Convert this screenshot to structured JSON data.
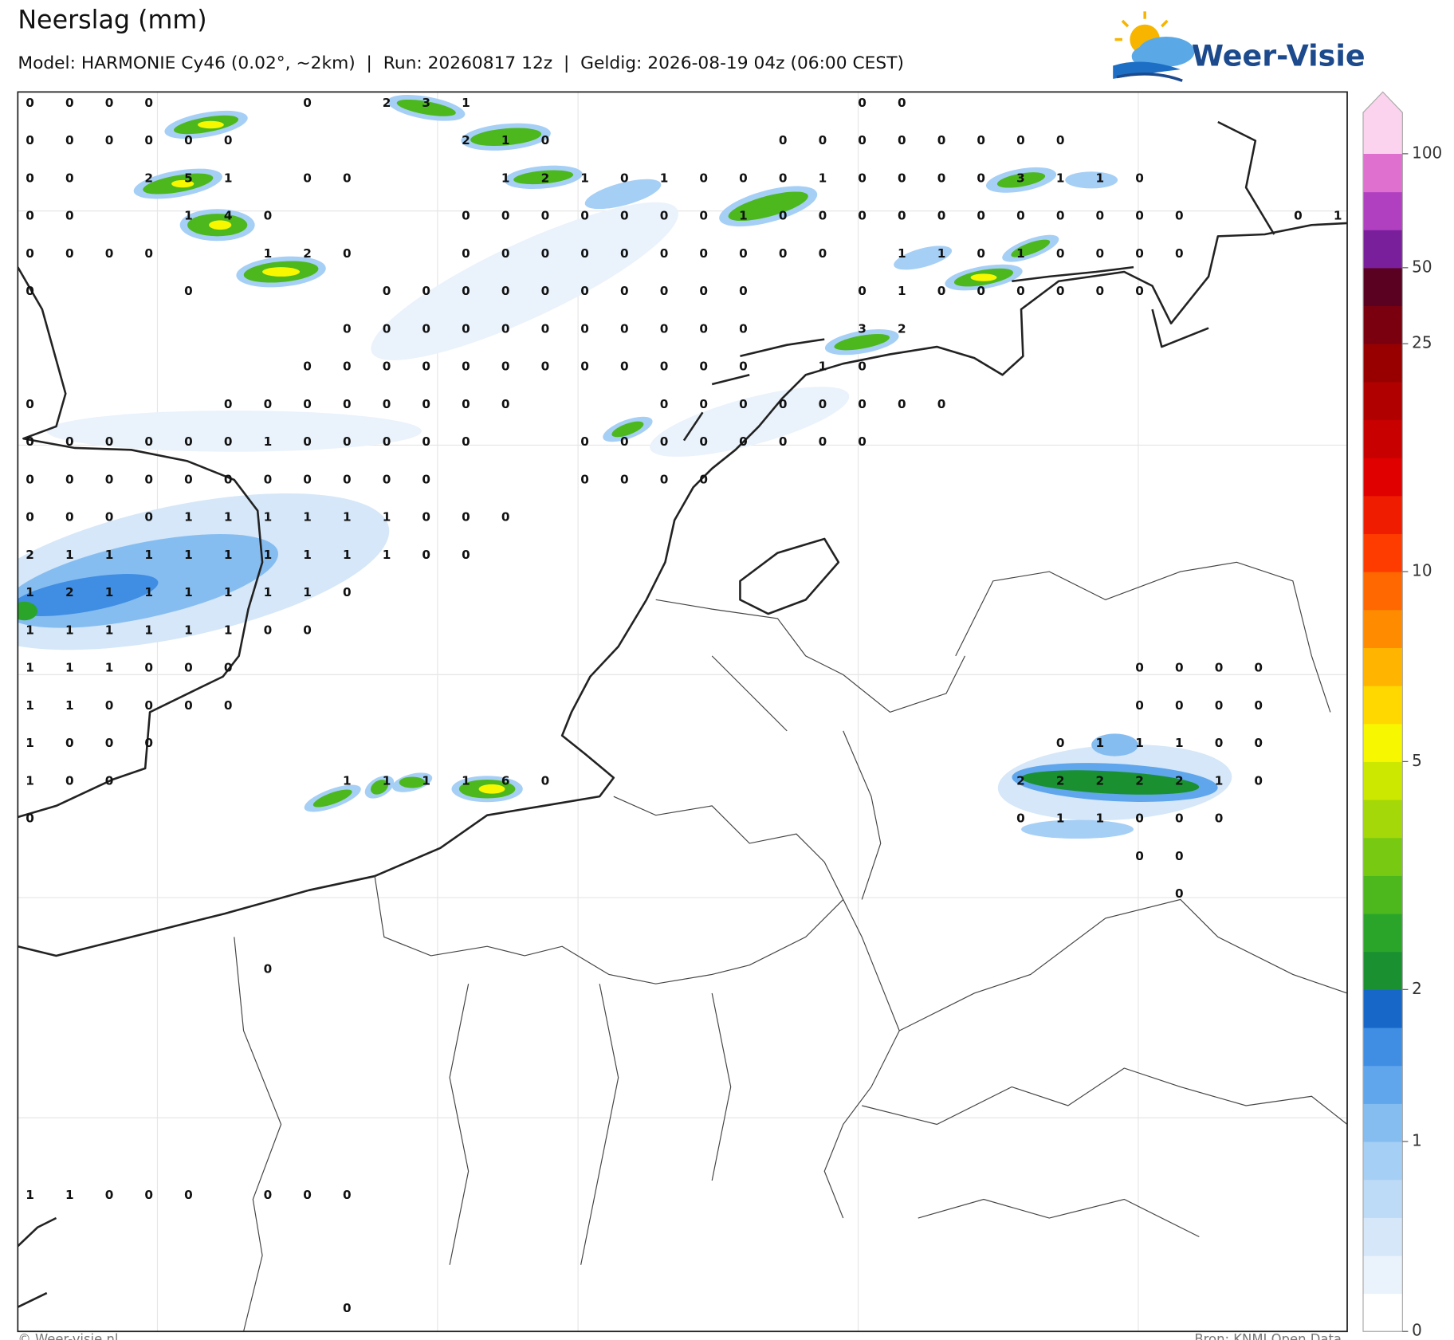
{
  "header": {
    "title": "Neerslag (mm)",
    "subtitle": "Model: HARMONIE Cy46 (0.02°, ~2km)  |  Run: 20260817 12z  |  Geldig: 2026-08-19 04z (06:00 CEST)"
  },
  "logo": {
    "text": "Weer-Visie"
  },
  "grid": {
    "rows": [
      [
        0,
        0,
        0,
        0,
        null,
        null,
        null,
        0,
        null,
        2,
        3,
        1,
        null,
        null,
        null,
        null,
        null,
        null,
        null,
        null,
        null,
        0,
        0
      ],
      [
        0,
        0,
        0,
        0,
        0,
        0,
        null,
        null,
        null,
        null,
        null,
        2,
        1,
        0,
        null,
        null,
        null,
        null,
        null,
        0,
        0,
        0,
        0,
        0,
        0,
        0,
        0
      ],
      [
        0,
        0,
        null,
        2,
        5,
        1,
        null,
        0,
        0,
        null,
        null,
        null,
        1,
        2,
        1,
        0,
        1,
        0,
        0,
        0,
        1,
        0,
        0,
        0,
        0,
        3,
        1,
        1,
        0
      ],
      [
        0,
        0,
        null,
        null,
        1,
        4,
        0,
        null,
        null,
        null,
        null,
        0,
        0,
        0,
        0,
        0,
        0,
        0,
        1,
        0,
        0,
        0,
        0,
        0,
        0,
        0,
        0,
        0,
        0,
        0,
        null,
        null,
        0,
        1
      ],
      [
        0,
        0,
        0,
        0,
        null,
        null,
        1,
        2,
        0,
        null,
        null,
        0,
        0,
        0,
        0,
        0,
        0,
        0,
        0,
        0,
        0,
        null,
        1,
        1,
        0,
        1,
        0,
        0,
        0,
        0
      ],
      [
        0,
        null,
        null,
        null,
        0,
        null,
        null,
        null,
        null,
        0,
        0,
        0,
        0,
        0,
        0,
        0,
        0,
        0,
        0,
        null,
        null,
        0,
        1,
        0,
        0,
        0,
        0,
        0,
        0
      ],
      [
        null,
        null,
        null,
        null,
        null,
        null,
        null,
        null,
        0,
        0,
        0,
        0,
        0,
        0,
        0,
        0,
        0,
        0,
        0,
        null,
        null,
        3,
        2
      ],
      [
        null,
        null,
        null,
        null,
        null,
        null,
        null,
        0,
        0,
        0,
        0,
        0,
        0,
        0,
        0,
        0,
        0,
        0,
        0,
        null,
        1,
        0
      ],
      [
        0,
        null,
        null,
        null,
        null,
        0,
        0,
        0,
        0,
        0,
        0,
        0,
        0,
        null,
        null,
        null,
        0,
        0,
        0,
        0,
        0,
        0,
        0,
        0
      ],
      [
        0,
        0,
        0,
        0,
        0,
        0,
        1,
        0,
        0,
        0,
        0,
        0,
        null,
        null,
        0,
        0,
        0,
        0,
        0,
        0,
        0,
        0
      ],
      [
        0,
        0,
        0,
        0,
        0,
        0,
        0,
        0,
        0,
        0,
        0,
        null,
        null,
        null,
        0,
        0,
        0,
        0
      ],
      [
        0,
        0,
        0,
        0,
        1,
        1,
        1,
        1,
        1,
        1,
        0,
        0,
        0
      ],
      [
        2,
        1,
        1,
        1,
        1,
        1,
        1,
        1,
        1,
        1,
        0,
        0
      ],
      [
        1,
        2,
        1,
        1,
        1,
        1,
        1,
        1,
        0
      ],
      [
        1,
        1,
        1,
        1,
        1,
        1,
        0,
        0
      ],
      [
        1,
        1,
        1,
        0,
        0,
        0,
        null,
        null,
        null,
        null,
        null,
        null,
        null,
        null,
        null,
        null,
        null,
        null,
        null,
        null,
        null,
        null,
        null,
        null,
        null,
        null,
        null,
        null,
        0,
        0,
        0,
        0
      ],
      [
        1,
        1,
        0,
        0,
        0,
        0,
        null,
        null,
        null,
        null,
        null,
        null,
        null,
        null,
        null,
        null,
        null,
        null,
        null,
        null,
        null,
        null,
        null,
        null,
        null,
        null,
        null,
        null,
        0,
        0,
        0,
        0
      ],
      [
        1,
        0,
        0,
        0,
        null,
        null,
        null,
        null,
        null,
        null,
        null,
        null,
        null,
        null,
        null,
        null,
        null,
        null,
        null,
        null,
        null,
        null,
        null,
        null,
        null,
        null,
        0,
        1,
        1,
        1,
        0,
        0
      ],
      [
        1,
        0,
        0,
        null,
        null,
        null,
        null,
        null,
        1,
        1,
        1,
        1,
        6,
        0,
        null,
        null,
        null,
        null,
        null,
        null,
        null,
        null,
        null,
        null,
        null,
        2,
        2,
        2,
        2,
        2,
        1,
        0
      ],
      [
        0,
        null,
        null,
        null,
        null,
        null,
        null,
        null,
        null,
        null,
        null,
        null,
        null,
        null,
        null,
        null,
        null,
        null,
        null,
        null,
        null,
        null,
        null,
        null,
        null,
        0,
        1,
        1,
        0,
        0,
        0
      ],
      [
        null,
        null,
        null,
        null,
        null,
        null,
        null,
        null,
        null,
        null,
        null,
        null,
        null,
        null,
        null,
        null,
        null,
        null,
        null,
        null,
        null,
        null,
        null,
        null,
        null,
        null,
        null,
        null,
        0,
        0
      ],
      [
        null,
        null,
        null,
        null,
        null,
        null,
        null,
        null,
        null,
        null,
        null,
        null,
        null,
        null,
        null,
        null,
        null,
        null,
        null,
        null,
        null,
        null,
        null,
        null,
        null,
        null,
        null,
        null,
        null,
        0
      ],
      [],
      [
        null,
        null,
        null,
        null,
        null,
        null,
        0
      ],
      [],
      [],
      [],
      [],
      [],
      [
        1,
        1,
        0,
        0,
        0,
        null,
        0,
        0,
        0
      ],
      [],
      [],
      [
        null,
        null,
        null,
        null,
        null,
        null,
        null,
        null,
        0
      ]
    ]
  },
  "colorbar": {
    "ticks": [
      0,
      1,
      2,
      5,
      10,
      25,
      50,
      100
    ],
    "colors": [
      "#ffffff",
      "#eaf2fb",
      "#d5e7f8",
      "#bddbf7",
      "#a6cff6",
      "#86bdf1",
      "#5fa6ec",
      "#3f8ee3",
      "#1767c9",
      "#1a9030",
      "#2aa52a",
      "#4cb81e",
      "#78c912",
      "#a4d808",
      "#cce800",
      "#f7f700",
      "#ffd800",
      "#ffb400",
      "#ff8c00",
      "#ff6800",
      "#ff3c00",
      "#f01c00",
      "#e00000",
      "#c80000",
      "#b00000",
      "#980000",
      "#7a0010",
      "#5a0020",
      "#7a1f9c",
      "#b040c0",
      "#e070d0"
    ],
    "arrow_color": "#fcd3ee"
  },
  "footer": {
    "left": "© Weer-visie.nl",
    "right": "Bron: KNMI Open Data"
  }
}
